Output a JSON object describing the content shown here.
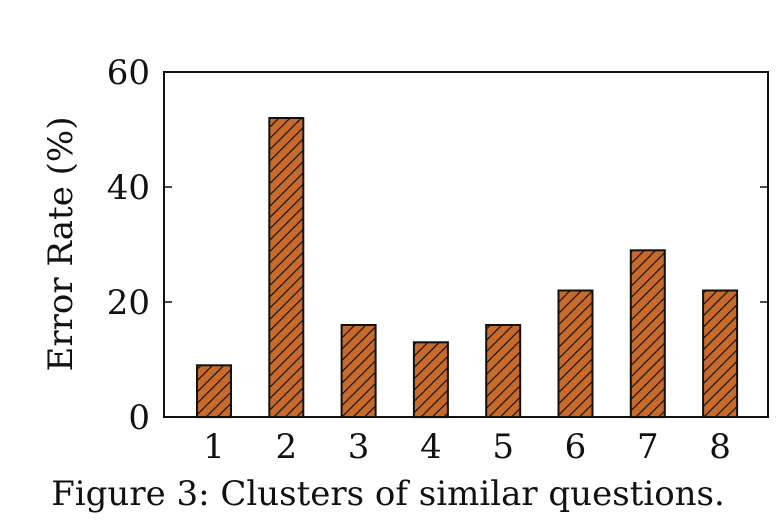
{
  "caption": "Figure 3: Clusters of similar questions.",
  "chart_data": {
    "type": "bar",
    "title": "",
    "xlabel": "",
    "ylabel": "Error Rate (%)",
    "categories": [
      "1",
      "2",
      "3",
      "4",
      "5",
      "6",
      "7",
      "8"
    ],
    "values": [
      9,
      52,
      16,
      13,
      16,
      22,
      29,
      22
    ],
    "ylim": [
      0,
      60
    ],
    "yticks": [
      0,
      20,
      40,
      60
    ],
    "grid": false,
    "bar_color": "#c86a2a",
    "bar_pattern": "diagonal hatch"
  }
}
